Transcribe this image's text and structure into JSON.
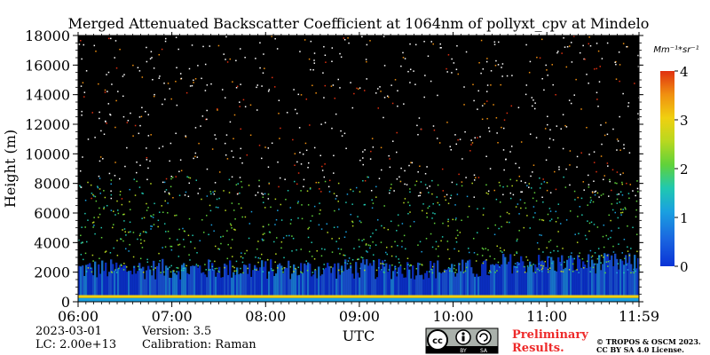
{
  "chart_data": {
    "type": "heatmap",
    "title": "Merged Attenuated Backscatter Coefficient at 1064nm of pollyxt_cpv at Mindelo",
    "xlabel": "UTC",
    "ylabel": "Height (m)",
    "x_tick_labels": [
      "06:00",
      "07:00",
      "08:00",
      "09:00",
      "10:00",
      "11:00",
      "11:59"
    ],
    "x_tick_hours": [
      6,
      7,
      8,
      9,
      10,
      11,
      11.983
    ],
    "xlim_hours": [
      6,
      11.983
    ],
    "y_ticks": [
      0,
      2000,
      4000,
      6000,
      8000,
      10000,
      12000,
      14000,
      16000,
      18000
    ],
    "ylim": [
      0,
      18000
    ],
    "colorbar": {
      "unit": "Mm⁻¹*sr⁻¹",
      "ticks": [
        0,
        1,
        2,
        3,
        4
      ],
      "range": [
        0,
        4
      ],
      "colormap": [
        "#0a33d6",
        "#1aa0e0",
        "#20c8b0",
        "#60d23a",
        "#b8d820",
        "#f0d010",
        "#f09010",
        "#e03010"
      ]
    },
    "layers": [
      {
        "feature": "near-surface aerosol layer",
        "height_range_m": [
          0,
          2500
        ],
        "value_range": [
          0.3,
          1.0
        ]
      },
      {
        "feature": "surface strong return",
        "height_range_m": [
          0,
          400
        ],
        "value_range": [
          2.0,
          4.0
        ]
      },
      {
        "feature": "scattered signal",
        "height_range_m": [
          2500,
          8000
        ],
        "value_range": [
          0.8,
          2.5
        ]
      },
      {
        "feature": "noise",
        "height_range_m": [
          8000,
          18000
        ],
        "value_range": [
          0,
          4
        ]
      }
    ]
  },
  "info": {
    "date": "2023-03-01",
    "lc": "LC: 2.00e+13",
    "version": "Version: 3.5",
    "calibration": "Calibration: Raman"
  },
  "license": {
    "preliminary": "Preliminary",
    "results": "Results.",
    "copyright_line1": "© TROPOS & OSCM 2023.",
    "copyright_line2": "CC BY SA 4.0 License.",
    "badge_cc": "cc",
    "badge_by": "BY",
    "badge_sa": "SA"
  }
}
